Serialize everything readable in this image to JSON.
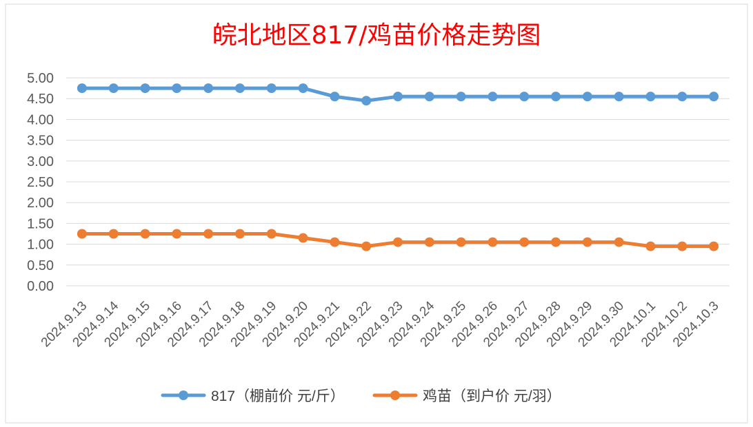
{
  "chart_data": {
    "type": "line",
    "title": "皖北地区817/鸡苗价格走势图",
    "title_color": "#FF0000",
    "categories": [
      "2024.9.13",
      "2024.9.14",
      "2024.9.15",
      "2024.9.16",
      "2024.9.17",
      "2024.9.18",
      "2024.9.19",
      "2024.9.20",
      "2024.9.21",
      "2024.9.22",
      "2024.9.23",
      "2024.9.24",
      "2024.9.25",
      "2024.9.26",
      "2024.9.27",
      "2024.9.28",
      "2024.9.29",
      "2024.9.30",
      "2024.10.1",
      "2024.10.2",
      "2024.10.3"
    ],
    "series": [
      {
        "name": "817（棚前价 元/斤）",
        "color": "#5B9BD5",
        "values": [
          4.75,
          4.75,
          4.75,
          4.75,
          4.75,
          4.75,
          4.75,
          4.75,
          4.55,
          4.45,
          4.55,
          4.55,
          4.55,
          4.55,
          4.55,
          4.55,
          4.55,
          4.55,
          4.55,
          4.55,
          4.55
        ]
      },
      {
        "name": "鸡苗（到户价 元/羽）",
        "color": "#ED7D31",
        "values": [
          1.25,
          1.25,
          1.25,
          1.25,
          1.25,
          1.25,
          1.25,
          1.15,
          1.05,
          0.95,
          1.05,
          1.05,
          1.05,
          1.05,
          1.05,
          1.05,
          1.05,
          1.05,
          0.95,
          0.95,
          0.95
        ]
      }
    ],
    "ylim": [
      0,
      5
    ],
    "yticks": [
      "0.00",
      "0.50",
      "1.00",
      "1.50",
      "2.00",
      "2.50",
      "3.00",
      "3.50",
      "4.00",
      "4.50",
      "5.00"
    ],
    "xlabel": "",
    "ylabel": "",
    "grid": true,
    "legend_position": "bottom"
  }
}
